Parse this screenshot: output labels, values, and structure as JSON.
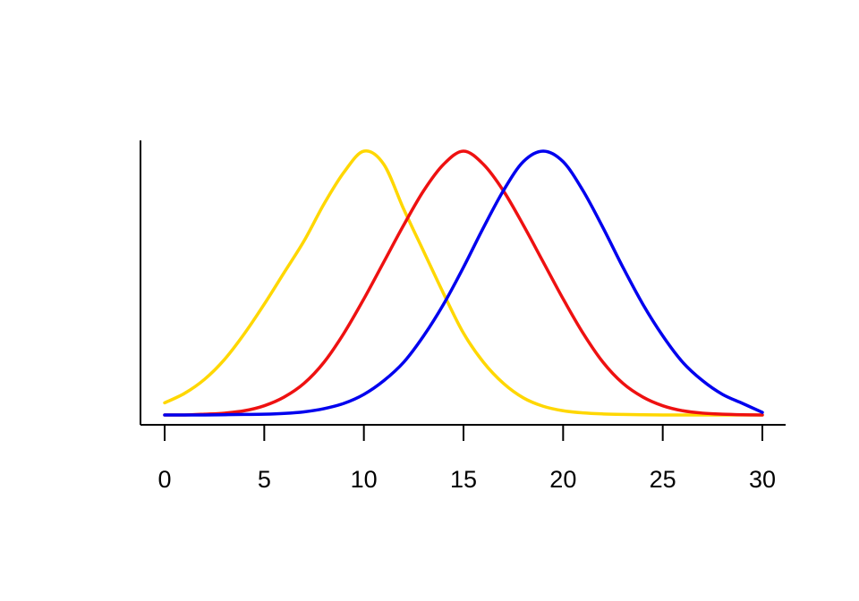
{
  "chart_data": {
    "type": "line",
    "title": "",
    "xlabel": "",
    "ylabel": "",
    "xlim": [
      0,
      30
    ],
    "ylim": [
      0,
      1
    ],
    "x_ticks": [
      "0",
      "5",
      "10",
      "15",
      "20",
      "25",
      "30"
    ],
    "x_tick_values": [
      0,
      5,
      10,
      15,
      20,
      25,
      30
    ],
    "y_ticks": [],
    "grid": false,
    "legend": "none",
    "series": [
      {
        "color": "#FFD700",
        "x": [
          0,
          1,
          2,
          3,
          4,
          5,
          6,
          7,
          8,
          9,
          10,
          11,
          12,
          13,
          14,
          15,
          16,
          17,
          18,
          19,
          20,
          21,
          22,
          23,
          24,
          25,
          26,
          27,
          28,
          29,
          30
        ],
        "y": [
          0.046,
          0.082,
          0.135,
          0.21,
          0.308,
          0.42,
          0.54,
          0.66,
          0.8,
          0.92,
          1.0,
          0.95,
          0.78,
          0.62,
          0.46,
          0.31,
          0.2,
          0.12,
          0.065,
          0.033,
          0.016,
          0.008,
          0.004,
          0.002,
          0.001,
          0.0,
          0.0,
          0.0,
          0.0,
          0.0,
          0.0
        ]
      },
      {
        "color": "#EE1111",
        "x": [
          0,
          1,
          2,
          3,
          4,
          5,
          6,
          7,
          8,
          9,
          10,
          11,
          12,
          13,
          14,
          15,
          16,
          17,
          18,
          19,
          20,
          21,
          22,
          23,
          24,
          25,
          26,
          27,
          28,
          29,
          30
        ],
        "y": [
          0.0,
          0.0,
          0.003,
          0.007,
          0.016,
          0.035,
          0.068,
          0.12,
          0.2,
          0.31,
          0.44,
          0.58,
          0.72,
          0.85,
          0.95,
          1.0,
          0.95,
          0.85,
          0.72,
          0.58,
          0.44,
          0.31,
          0.2,
          0.12,
          0.068,
          0.035,
          0.016,
          0.007,
          0.003,
          0.001,
          0.0
        ]
      },
      {
        "color": "#0000EE",
        "x": [
          0,
          1,
          2,
          3,
          4,
          5,
          6,
          7,
          8,
          9,
          10,
          11,
          12,
          13,
          14,
          15,
          16,
          17,
          18,
          19,
          20,
          21,
          22,
          23,
          24,
          25,
          26,
          27,
          28,
          29,
          30
        ],
        "y": [
          0.0,
          0.0,
          0.0,
          0.001,
          0.002,
          0.003,
          0.006,
          0.012,
          0.024,
          0.044,
          0.078,
          0.13,
          0.2,
          0.3,
          0.42,
          0.56,
          0.71,
          0.85,
          0.96,
          1.0,
          0.96,
          0.85,
          0.71,
          0.56,
          0.42,
          0.3,
          0.2,
          0.13,
          0.078,
          0.044,
          0.01
        ]
      }
    ]
  }
}
